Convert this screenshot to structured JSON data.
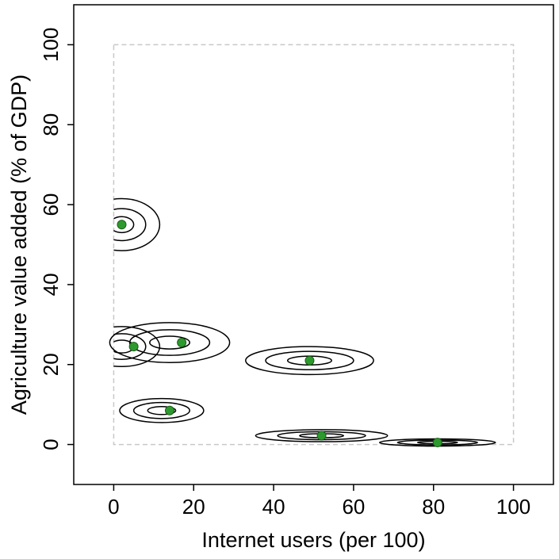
{
  "chart_data": {
    "type": "scatter",
    "title": "",
    "xlabel": "Internet users (per 100)",
    "ylabel": "Agriculture value added (% of GDP)",
    "xlim": [
      -10,
      110
    ],
    "ylim": [
      -10,
      110
    ],
    "x_ticks": [
      0,
      20,
      40,
      60,
      80,
      100
    ],
    "y_ticks": [
      0,
      20,
      40,
      60,
      80,
      100
    ],
    "x_tick_labels": [
      "0",
      "20",
      "40",
      "60",
      "80",
      "100"
    ],
    "y_tick_labels": [
      "0",
      "20",
      "40",
      "60",
      "80",
      "100"
    ],
    "grid": false,
    "legend": "none",
    "reference_box": {
      "x": [
        0,
        100
      ],
      "y": [
        0,
        100
      ],
      "style": "dashed",
      "color": "#c8c8c8"
    },
    "point_color": "#2e9a2e",
    "contour_color": "#000000",
    "points": [
      {
        "x": 2,
        "y": 55
      },
      {
        "x": 5,
        "y": 24.5
      },
      {
        "x": 17,
        "y": 25.5
      },
      {
        "x": 14,
        "y": 8.5
      },
      {
        "x": 49,
        "y": 21
      },
      {
        "x": 52,
        "y": 2.2
      },
      {
        "x": 81,
        "y": 0.5
      }
    ],
    "contours": [
      {
        "cx": 2,
        "cy": 55,
        "bounded_left_at_zero": true,
        "levels": [
          {
            "rx": 9.5,
            "ry": 6.5
          },
          {
            "rx": 6,
            "ry": 4
          },
          {
            "rx": 3,
            "ry": 2
          }
        ]
      },
      {
        "cx": 2,
        "cy": 24.5,
        "bounded_left_at_zero": true,
        "levels": [
          {
            "rx": 9.5,
            "ry": 5
          },
          {
            "rx": 6,
            "ry": 3.2
          },
          {
            "rx": 3,
            "ry": 1.6
          }
        ]
      },
      {
        "cx": 14,
        "cy": 25.5,
        "levels": [
          {
            "rx": 15,
            "ry": 5
          },
          {
            "rx": 10,
            "ry": 3.2
          },
          {
            "rx": 5,
            "ry": 1.6
          }
        ]
      },
      {
        "cx": 12,
        "cy": 8.5,
        "levels": [
          {
            "rx": 10.5,
            "ry": 3
          },
          {
            "rx": 7,
            "ry": 2
          },
          {
            "rx": 3.5,
            "ry": 1
          }
        ]
      },
      {
        "cx": 49,
        "cy": 21,
        "levels": [
          {
            "rx": 16,
            "ry": 3.5
          },
          {
            "rx": 11,
            "ry": 2.3
          },
          {
            "rx": 5.5,
            "ry": 1.1
          }
        ]
      },
      {
        "cx": 52,
        "cy": 2.2,
        "levels": [
          {
            "rx": 16.5,
            "ry": 1.5
          },
          {
            "rx": 11,
            "ry": 1.0
          },
          {
            "rx": 5.5,
            "ry": 0.5
          }
        ]
      },
      {
        "cx": 81,
        "cy": 0.5,
        "levels": [
          {
            "rx": 14.5,
            "ry": 0.9
          },
          {
            "rx": 10,
            "ry": 0.6
          },
          {
            "rx": 5,
            "ry": 0.3
          }
        ]
      }
    ]
  }
}
